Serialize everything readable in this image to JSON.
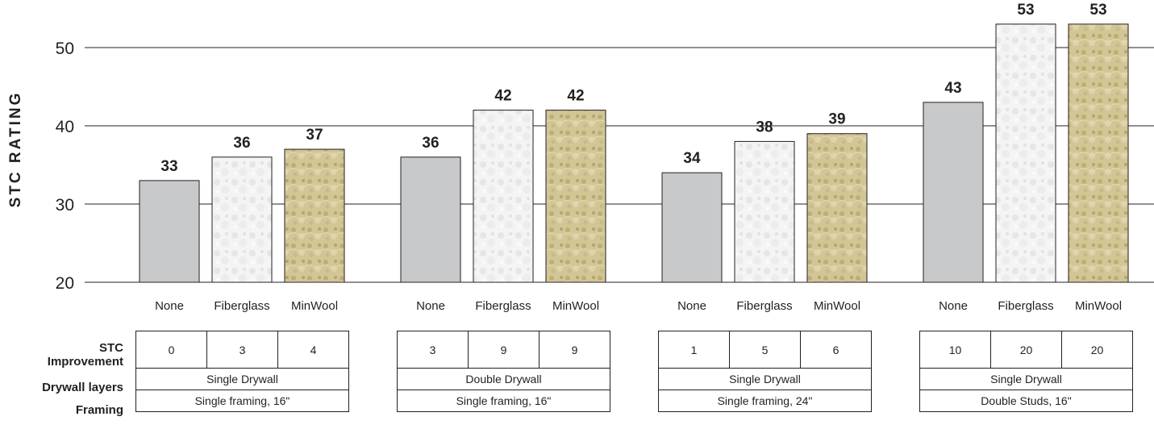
{
  "chart_data": {
    "type": "bar",
    "ylabel": "STC RATING",
    "ylim": [
      20,
      55
    ],
    "yticks": [
      20,
      30,
      40,
      50
    ],
    "grid": true,
    "groups": [
      {
        "categories": [
          "None",
          "Fiberglass",
          "MinWool"
        ],
        "values": [
          33,
          36,
          37
        ],
        "stc_improvement": [
          "0",
          "3",
          "4"
        ],
        "drywall_layers": "Single Drywall",
        "framing": "Single framing, 16\""
      },
      {
        "categories": [
          "None",
          "Fiberglass",
          "MinWool"
        ],
        "values": [
          36,
          42,
          42
        ],
        "stc_improvement": [
          "3",
          "9",
          "9"
        ],
        "drywall_layers": "Double Drywall",
        "framing": "Single framing, 16\""
      },
      {
        "categories": [
          "None",
          "Fiberglass",
          "MinWool"
        ],
        "values": [
          34,
          38,
          39
        ],
        "stc_improvement": [
          "1",
          "5",
          "6"
        ],
        "drywall_layers": "Single Drywall",
        "framing": "Single framing, 24\""
      },
      {
        "categories": [
          "None",
          "Fiberglass",
          "MinWool"
        ],
        "values": [
          43,
          53,
          53
        ],
        "stc_improvement": [
          "10",
          "20",
          "20"
        ],
        "drywall_layers": "Single Drywall",
        "framing": "Double Studs, 16\""
      }
    ],
    "bar_colors": {
      "None": "#c8c9cb",
      "Fiberglass": "#f3f3f3",
      "MinWool": "#cdbf8f"
    }
  },
  "table": {
    "row_labels": {
      "stc_improvement_line1": "STC",
      "stc_improvement_line2": "Improvement",
      "drywall_layers": "Drywall layers",
      "framing": "Framing"
    }
  }
}
